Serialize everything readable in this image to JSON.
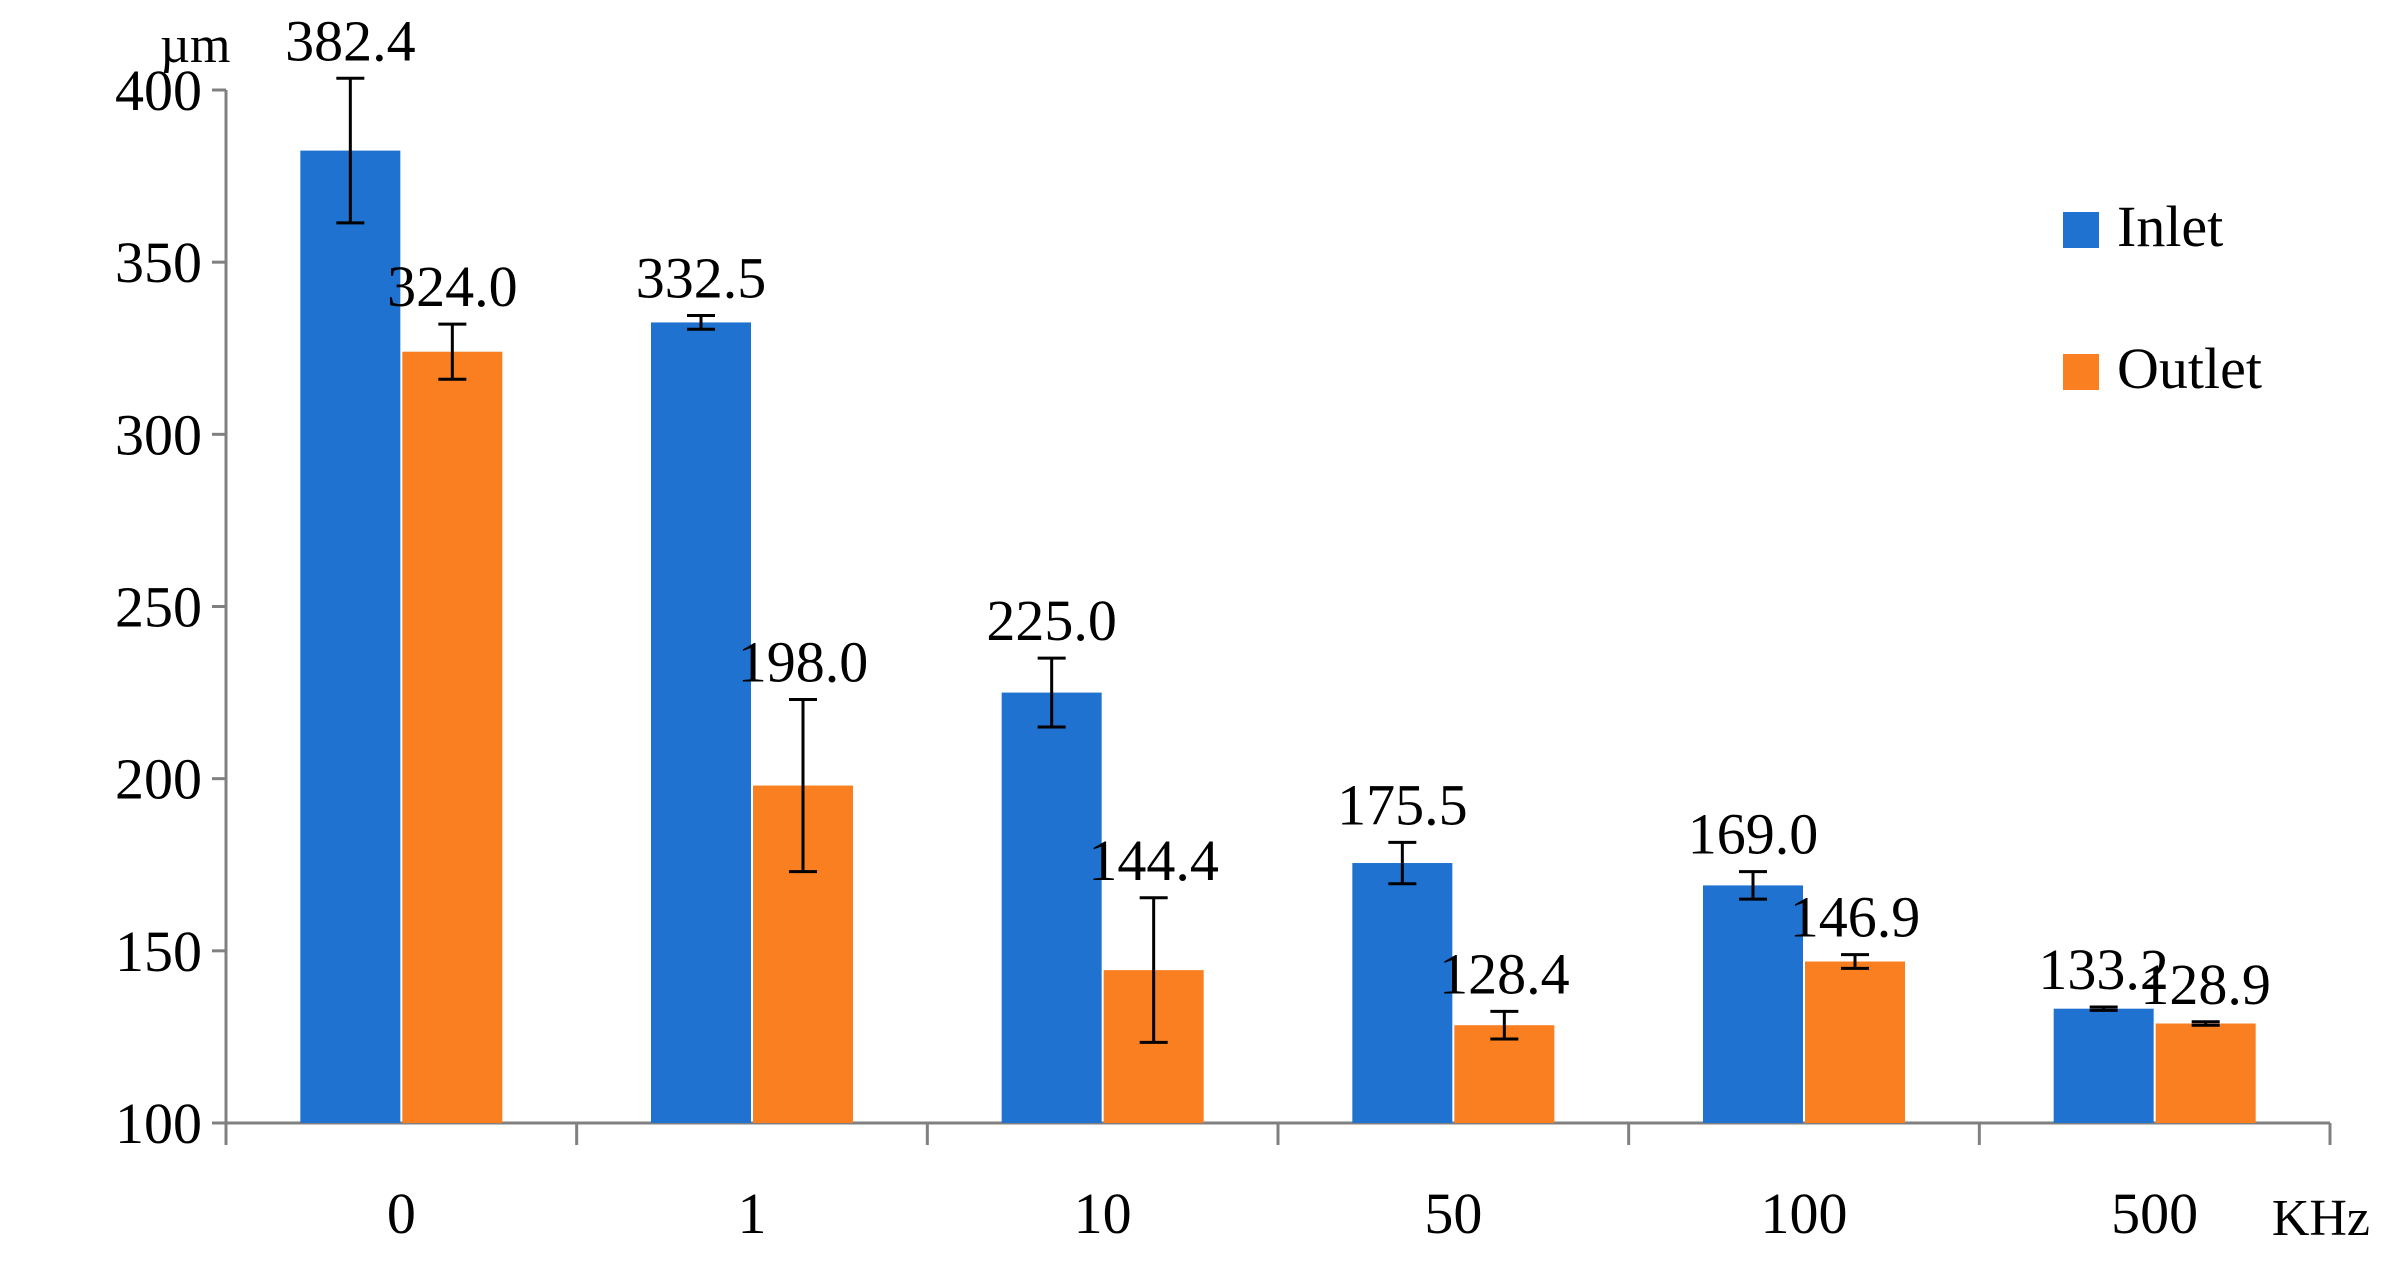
{
  "chart_data": {
    "type": "bar",
    "title": "",
    "xlabel": "",
    "ylabel": "",
    "y_unit": "µm",
    "x_unit": "KHz",
    "categories": [
      "0",
      "1",
      "10",
      "50",
      "100",
      "500"
    ],
    "ylim": [
      100,
      400
    ],
    "yticks": [
      100,
      150,
      200,
      250,
      300,
      350,
      400
    ],
    "grid": false,
    "legend_position": "right",
    "series": [
      {
        "name": "Inlet",
        "color": "#1f72cf",
        "values": [
          382.4,
          332.5,
          225.0,
          175.5,
          169.0,
          133.2
        ],
        "labels": [
          "382.4",
          "332.5",
          "225.0",
          "175.5",
          "169.0",
          "133.2"
        ],
        "error": [
          21,
          2,
          10,
          6,
          4,
          0.5
        ]
      },
      {
        "name": "Outlet",
        "color": "#f97f21",
        "values": [
          324.0,
          198.0,
          144.4,
          128.4,
          146.9,
          128.9
        ],
        "labels": [
          "324.0",
          "198.0",
          "144.4",
          "128.4",
          "146.9",
          "128.9"
        ],
        "error": [
          8,
          25,
          21,
          4,
          2,
          0.5
        ]
      }
    ]
  }
}
